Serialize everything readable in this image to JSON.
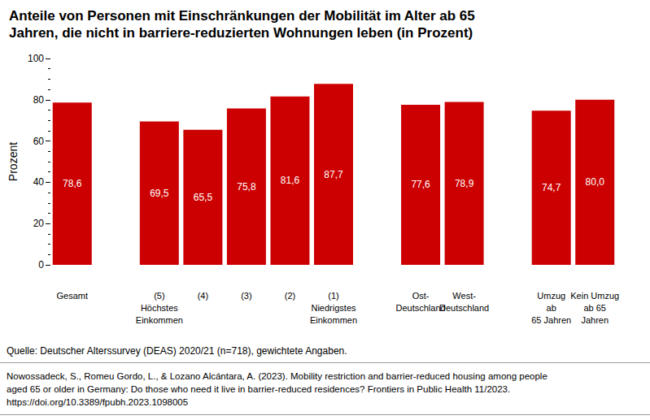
{
  "chart_data": {
    "type": "bar",
    "title": "Anteile von Personen mit Einschränkungen der Mobilität im Alter ab 65\nJahren, die nicht in barriere-reduzierten Wohnungen leben (in Prozent)",
    "y_label": "Prozent",
    "categories": [
      "Gesamt",
      null,
      "(5)\nHöchstes\nEinkommen",
      "(4)",
      "(3)",
      "(2)",
      "(1)\nNiedrigstes\nEinkommen",
      null,
      "Ost-\nDeutschland",
      "West-\nDeutschland",
      null,
      "Umzug\nab\n65 Jahren",
      "Kein Umzug\nab 65\nJahren"
    ],
    "values": [
      78.6,
      null,
      69.5,
      65.5,
      75.8,
      81.6,
      87.7,
      null,
      77.6,
      78.9,
      null,
      74.7,
      80.0
    ],
    "value_labels": [
      "78,6",
      null,
      "69,5",
      "65,5",
      "75,8",
      "81,6",
      "87,7",
      null,
      "77,6",
      "78,9",
      null,
      "74,7",
      "80,0"
    ],
    "color": "#cc0000",
    "ylim": [
      0,
      100
    ],
    "yticks": [
      0,
      20,
      40,
      60,
      80,
      100
    ],
    "grid": false,
    "data_labels": true,
    "annotations": [
      "Quelle: Deutscher Alterssurvey (DEAS) 2020/21 (n=718), gewichtete Angaben.",
      "Nowossadeck, S., Romeu Gordo, L., & Lozano Alcántara, A. (2023). Mobility restriction and barrier-reduced housing among people\naged 65 or older in Germany: Do those who need it live in barrier-reduced residences? Frontiers in Public Health 11/2023.\nhttps://doi.org/10.3389/fpubh.2023.1098005"
    ]
  }
}
